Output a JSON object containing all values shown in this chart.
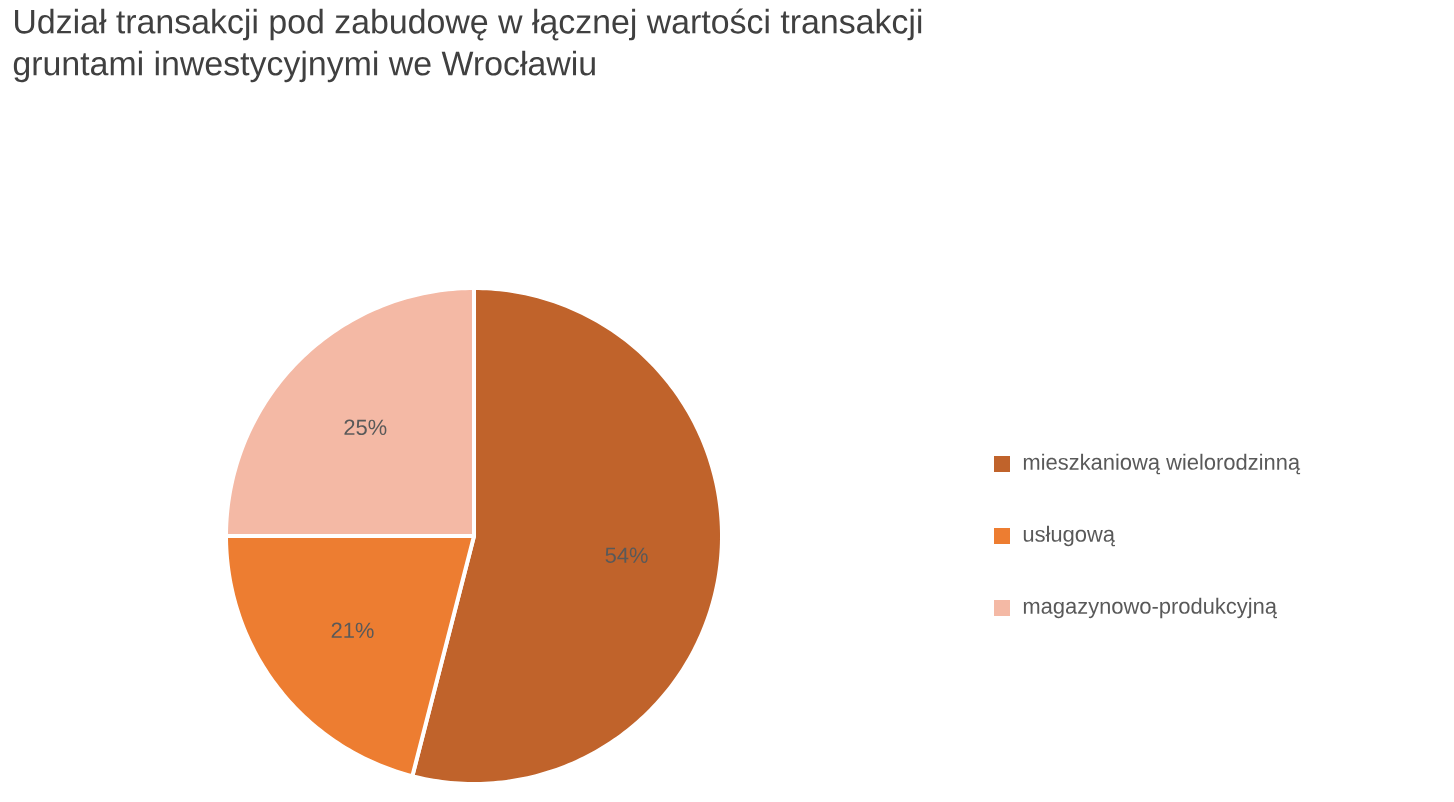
{
  "chart_data": {
    "type": "pie",
    "title": "Udział transakcji pod zabudowę w łącznej wartości transakcji gruntami inwestycyjnymi we Wrocławiu",
    "categories": [
      "mieszkaniową wielorodzinną",
      "usługową",
      "magazynowo-produkcyjną"
    ],
    "values": [
      54,
      21,
      25
    ],
    "colors": [
      "#c0632b",
      "#ed7d31",
      "#f4b9a5"
    ],
    "value_labels": [
      "54%",
      "21%",
      "25%"
    ],
    "legend": "right"
  }
}
